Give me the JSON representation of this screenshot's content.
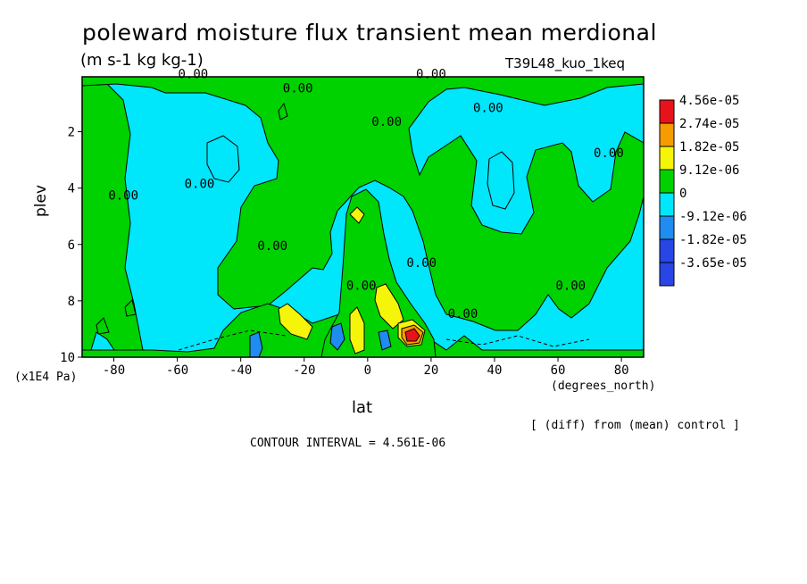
{
  "chart_data": {
    "type": "contour",
    "title": "poleward moisture flux transient mean merdional",
    "units": "(m s-1 kg kg-1)",
    "experiment": "T39L48_kuo_1keq",
    "xlabel": "lat",
    "x_unit": "(degrees_north)",
    "ylabel": "plev",
    "y_unit": "(x1E4 Pa)",
    "xlim": [
      -90,
      87
    ],
    "ylim": [
      0.05,
      10
    ],
    "y_inverted": true,
    "x_ticks": [
      "-80",
      "-60",
      "-40",
      "-20",
      "0",
      "20",
      "40",
      "60",
      "80"
    ],
    "x_tick_values": [
      -80,
      -60,
      -40,
      -20,
      0,
      20,
      40,
      60,
      80
    ],
    "y_ticks": [
      "2",
      "4",
      "6",
      "8",
      "10"
    ],
    "y_tick_values": [
      2,
      4,
      6,
      8,
      10
    ],
    "contour_interval": "CONTOUR INTERVAL = 4.561E-06",
    "note": "[ (diff) from (mean) control ]",
    "contour_label": "0.00",
    "legend": [
      {
        "label": "4.56e-05",
        "color": "#e8131a"
      },
      {
        "label": "2.74e-05",
        "color": "#f59c00"
      },
      {
        "label": "1.82e-05",
        "color": "#f5f50a"
      },
      {
        "label": "9.12e-06",
        "color": "#00d200"
      },
      {
        "label": "0",
        "color": "#00e6fa"
      },
      {
        "label": "-9.12e-06",
        "color": "#1e8cf0"
      },
      {
        "label": "-1.82e-05",
        "color": "#2846e6"
      },
      {
        "label": "-3.65e-05",
        "color": "#2846e6"
      }
    ],
    "colors": {
      "negative": "#00e6fa",
      "positive": "#00d200",
      "strong_positive": "#f5f50a",
      "very_strong_positive": "#f59c00",
      "max_positive": "#e8131a",
      "strong_negative": "#1e8cf0"
    }
  }
}
